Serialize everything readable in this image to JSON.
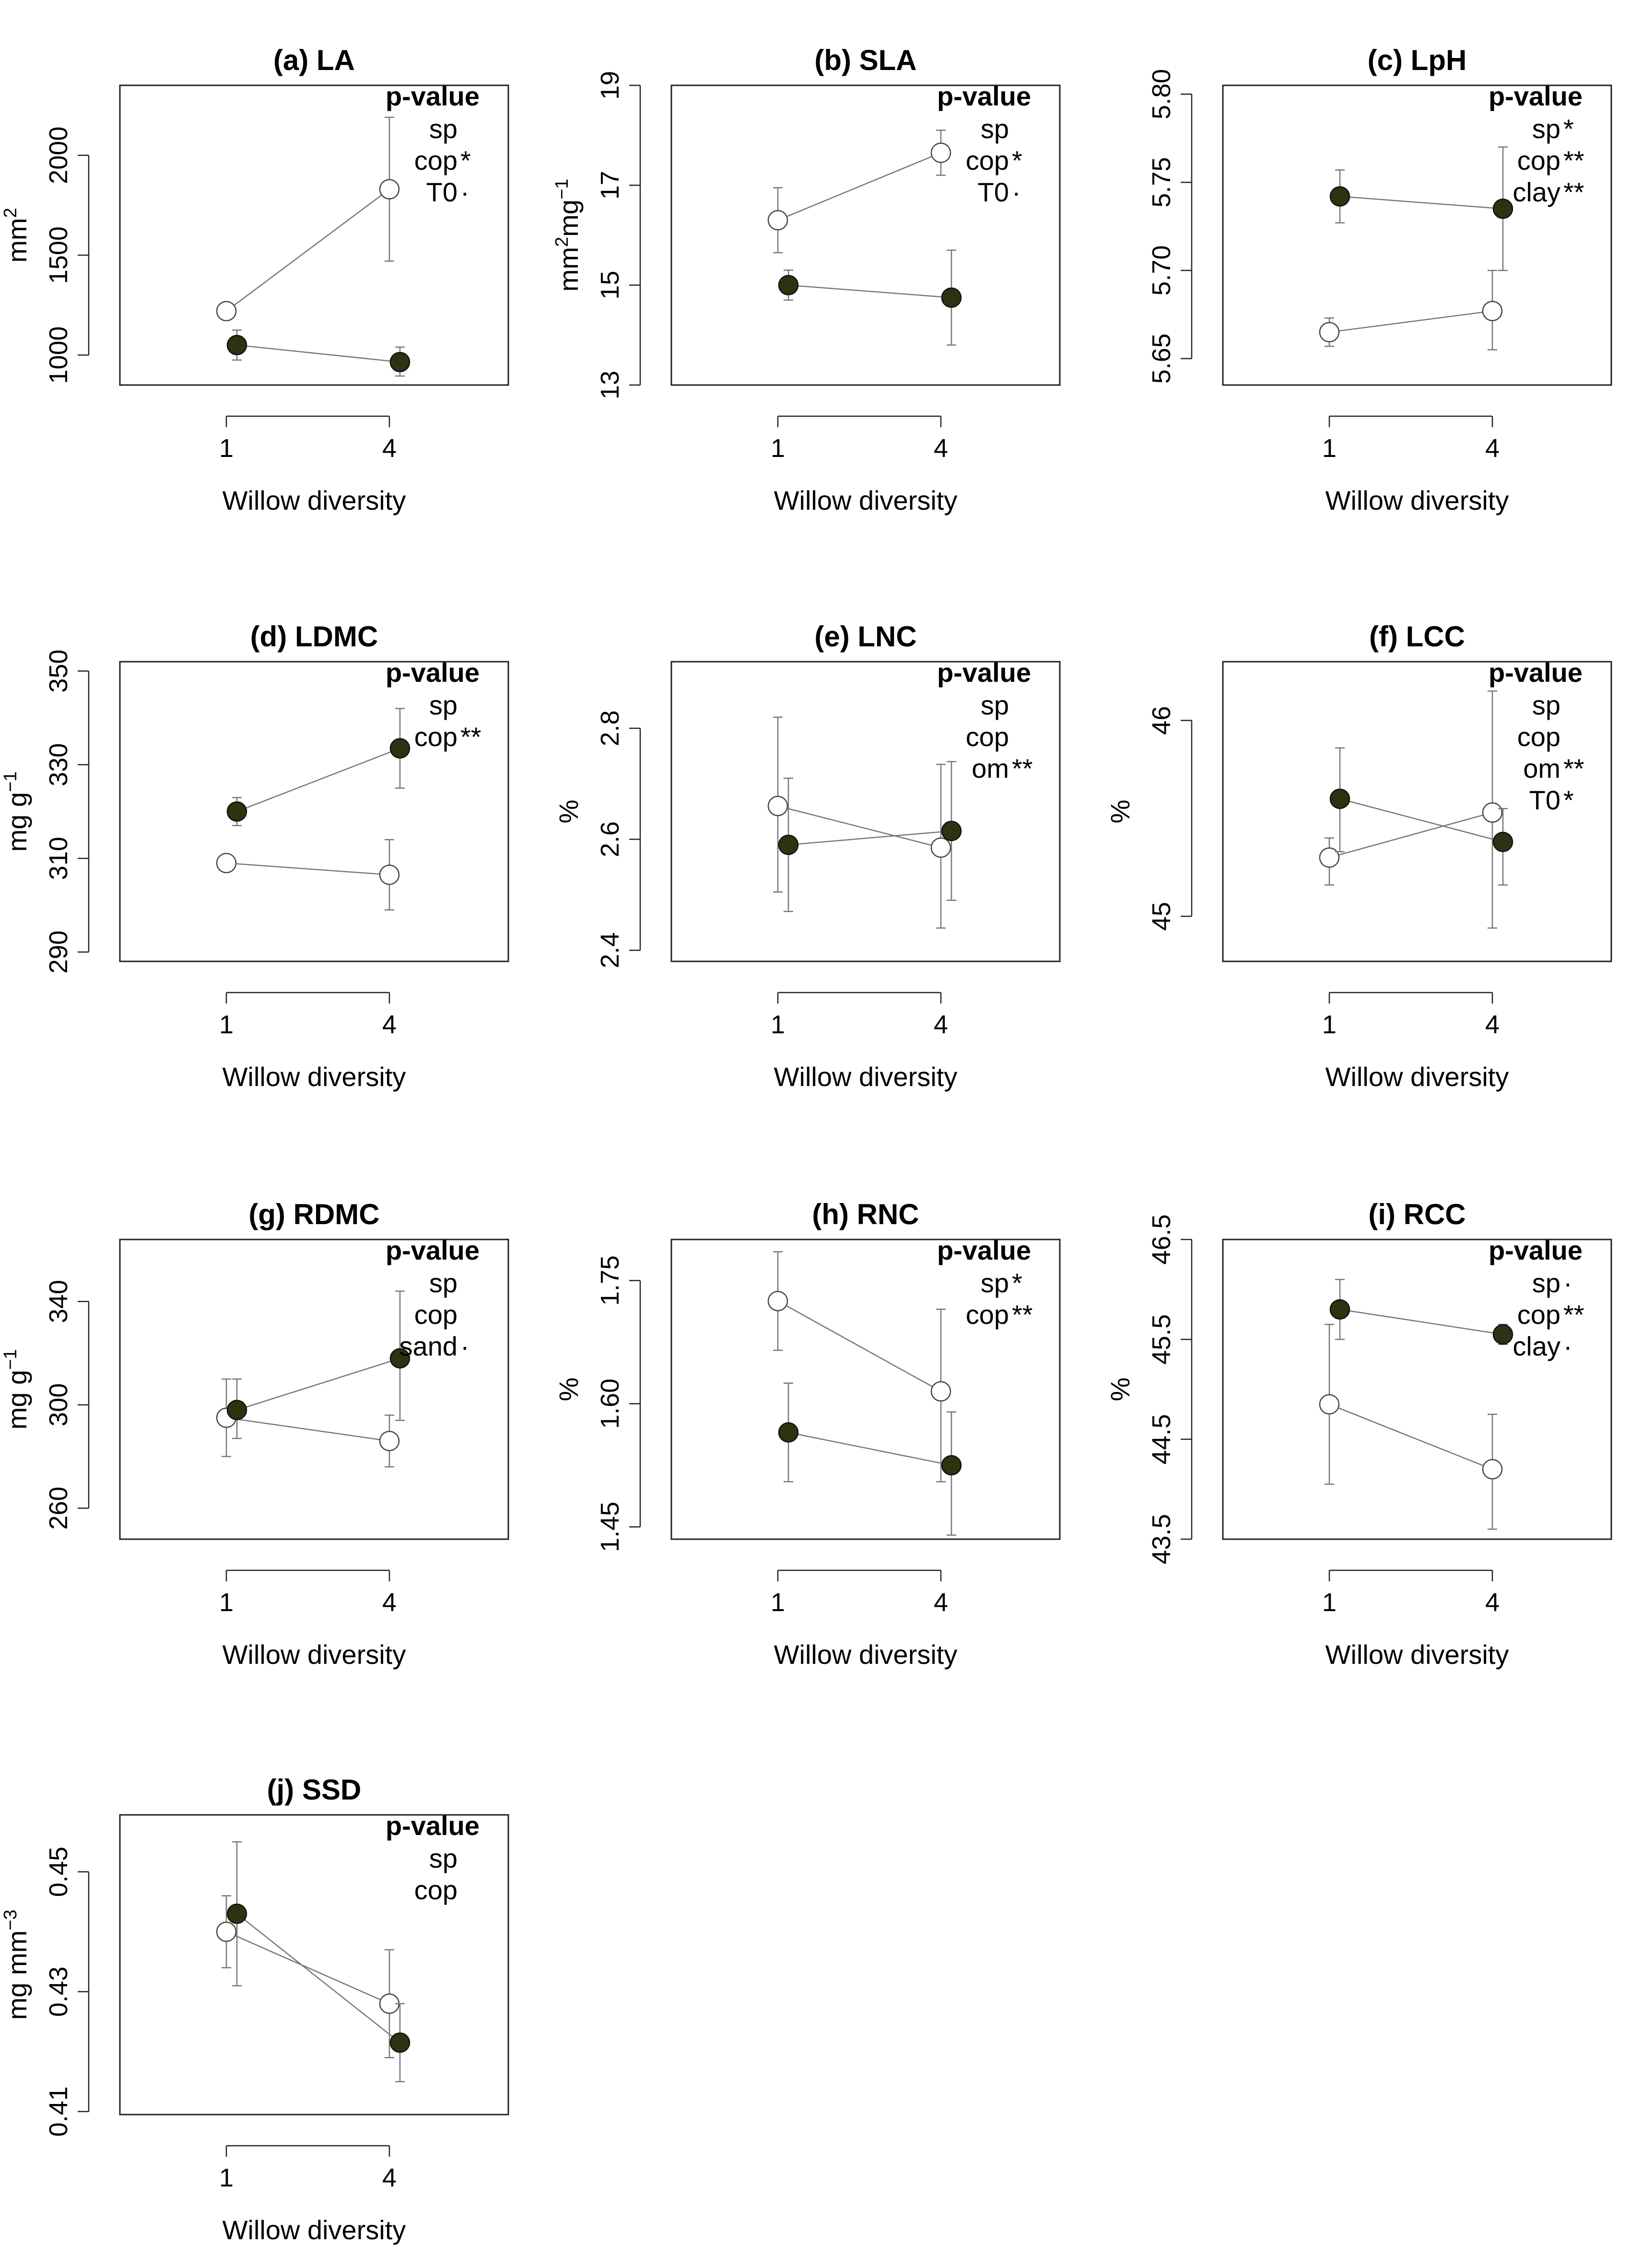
{
  "figure": {
    "background": "#ffffff",
    "filled_color": "#2b3311",
    "open_color": "#ffffff",
    "line_color": "#777777"
  },
  "chart_data": [
    {
      "type": "line",
      "title": "(a) LA",
      "xlabel": "Willow diversity",
      "ylabel": "mm²",
      "categories": [
        "1",
        "4"
      ],
      "ylim": [
        850,
        2350
      ],
      "yticks": [
        1000,
        1500,
        2000
      ],
      "series": [
        {
          "name": "open",
          "values": [
            1220,
            1830
          ],
          "err": [
            [
              1220,
              1220
            ],
            [
              1470,
              2190
            ]
          ]
        },
        {
          "name": "filled",
          "values": [
            1050,
            965
          ],
          "err": [
            [
              975,
              1125
            ],
            [
              895,
              1040
            ]
          ]
        }
      ],
      "annotation_title": "p-value",
      "annotations": [
        {
          "text": "sp",
          "sig": ""
        },
        {
          "text": "cop",
          "sig": "*"
        },
        {
          "text": "T0",
          "sig": "·"
        }
      ]
    },
    {
      "type": "line",
      "title": "(b) SLA",
      "xlabel": "Willow diversity",
      "ylabel": "mm²mg⁻¹",
      "categories": [
        "1",
        "4"
      ],
      "ylim": [
        13,
        19
      ],
      "yticks": [
        13,
        15,
        17,
        19
      ],
      "series": [
        {
          "name": "open",
          "values": [
            16.3,
            17.65
          ],
          "err": [
            [
              15.65,
              16.95
            ],
            [
              17.2,
              18.1
            ]
          ]
        },
        {
          "name": "filled",
          "values": [
            15.0,
            14.75
          ],
          "err": [
            [
              14.7,
              15.3
            ],
            [
              13.8,
              15.7
            ]
          ]
        }
      ],
      "annotation_title": "p-value",
      "annotations": [
        {
          "text": "sp",
          "sig": ""
        },
        {
          "text": "cop",
          "sig": "*"
        },
        {
          "text": "T0",
          "sig": "·"
        }
      ]
    },
    {
      "type": "line",
      "title": "(c) LpH",
      "xlabel": "Willow diversity",
      "ylabel": "",
      "categories": [
        "1",
        "4"
      ],
      "ylim": [
        5.635,
        5.805
      ],
      "yticks": [
        5.65,
        5.7,
        5.75,
        5.8
      ],
      "series": [
        {
          "name": "open",
          "values": [
            5.665,
            5.677
          ],
          "err": [
            [
              5.657,
              5.673
            ],
            [
              5.655,
              5.7
            ]
          ]
        },
        {
          "name": "filled",
          "values": [
            5.742,
            5.735
          ],
          "err": [
            [
              5.727,
              5.757
            ],
            [
              5.7,
              5.77
            ]
          ]
        }
      ],
      "annotation_title": "p-value",
      "annotations": [
        {
          "text": "sp",
          "sig": "*"
        },
        {
          "text": "cop",
          "sig": "**"
        },
        {
          "text": "clay",
          "sig": "**"
        }
      ]
    },
    {
      "type": "line",
      "title": "(d) LDMC",
      "xlabel": "Willow diversity",
      "ylabel": "mg g⁻¹",
      "categories": [
        "1",
        "4"
      ],
      "ylim": [
        288,
        352
      ],
      "yticks": [
        290,
        310,
        330,
        350
      ],
      "series": [
        {
          "name": "open",
          "values": [
            309,
            306.5
          ],
          "err": [
            [
              309,
              309
            ],
            [
              299,
              314
            ]
          ]
        },
        {
          "name": "filled",
          "values": [
            320,
            333.5
          ],
          "err": [
            [
              317,
              323
            ],
            [
              325,
              342
            ]
          ]
        }
      ],
      "annotation_title": "p-value",
      "annotations": [
        {
          "text": "sp",
          "sig": ""
        },
        {
          "text": "cop",
          "sig": "**"
        }
      ]
    },
    {
      "type": "line",
      "title": "(e) LNC",
      "xlabel": "Willow diversity",
      "ylabel": "%",
      "categories": [
        "1",
        "4"
      ],
      "ylim": [
        2.38,
        2.92
      ],
      "yticks": [
        2.4,
        2.6,
        2.8
      ],
      "series": [
        {
          "name": "open",
          "values": [
            2.66,
            2.585
          ],
          "err": [
            [
              2.505,
              2.82
            ],
            [
              2.44,
              2.735
            ]
          ]
        },
        {
          "name": "filled",
          "values": [
            2.59,
            2.615
          ],
          "err": [
            [
              2.47,
              2.71
            ],
            [
              2.49,
              2.74
            ]
          ]
        }
      ],
      "annotation_title": "p-value",
      "annotations": [
        {
          "text": "sp",
          "sig": ""
        },
        {
          "text": "cop",
          "sig": ""
        },
        {
          "text": "om",
          "sig": "**"
        }
      ]
    },
    {
      "type": "line",
      "title": "(f) LCC",
      "xlabel": "Willow diversity",
      "ylabel": "%",
      "categories": [
        "1",
        "4"
      ],
      "ylim": [
        44.77,
        46.3
      ],
      "yticks": [
        45.0,
        46.0
      ],
      "series": [
        {
          "name": "open",
          "values": [
            45.3,
            45.53
          ],
          "err": [
            [
              45.16,
              45.4
            ],
            [
              44.94,
              46.15
            ]
          ]
        },
        {
          "name": "filled",
          "values": [
            45.6,
            45.38
          ],
          "err": [
            [
              45.33,
              45.86
            ],
            [
              45.16,
              45.55
            ]
          ]
        }
      ],
      "annotation_title": "p-value",
      "annotations": [
        {
          "text": "sp",
          "sig": ""
        },
        {
          "text": "cop",
          "sig": ""
        },
        {
          "text": "om",
          "sig": "**"
        },
        {
          "text": "T0",
          "sig": "*"
        }
      ]
    },
    {
      "type": "line",
      "title": "(g) RDMC",
      "xlabel": "Willow diversity",
      "ylabel": "mg g⁻¹",
      "categories": [
        "1",
        "4"
      ],
      "ylim": [
        248,
        364
      ],
      "yticks": [
        260,
        300,
        340
      ],
      "series": [
        {
          "name": "open",
          "values": [
            295,
            286
          ],
          "err": [
            [
              280,
              310
            ],
            [
              276,
              296
            ]
          ]
        },
        {
          "name": "filled",
          "values": [
            298,
            318
          ],
          "err": [
            [
              287,
              310
            ],
            [
              294,
              344
            ]
          ]
        }
      ],
      "annotation_title": "p-value",
      "annotations": [
        {
          "text": "sp",
          "sig": ""
        },
        {
          "text": "cop",
          "sig": ""
        },
        {
          "text": "sand",
          "sig": "·"
        }
      ]
    },
    {
      "type": "line",
      "title": "(h) RNC",
      "xlabel": "Willow diversity",
      "ylabel": "%",
      "categories": [
        "1",
        "4"
      ],
      "ylim": [
        1.435,
        1.8
      ],
      "yticks": [
        1.45,
        1.6,
        1.75
      ],
      "series": [
        {
          "name": "open",
          "values": [
            1.725,
            1.615
          ],
          "err": [
            [
              1.665,
              1.785
            ],
            [
              1.505,
              1.715
            ]
          ]
        },
        {
          "name": "filled",
          "values": [
            1.565,
            1.525
          ],
          "err": [
            [
              1.505,
              1.625
            ],
            [
              1.44,
              1.59
            ]
          ]
        }
      ],
      "annotation_title": "p-value",
      "annotations": [
        {
          "text": "sp",
          "sig": "*"
        },
        {
          "text": "cop",
          "sig": "**"
        }
      ]
    },
    {
      "type": "line",
      "title": "(i) RCC",
      "xlabel": "Willow diversity",
      "ylabel": "%",
      "categories": [
        "1",
        "4"
      ],
      "ylim": [
        43.5,
        46.5
      ],
      "yticks": [
        43.5,
        44.5,
        45.5,
        46.5
      ],
      "series": [
        {
          "name": "open",
          "values": [
            44.85,
            44.2
          ],
          "err": [
            [
              44.05,
              45.65
            ],
            [
              43.6,
              44.75
            ]
          ]
        },
        {
          "name": "filled",
          "values": [
            45.8,
            45.55
          ],
          "err": [
            [
              45.5,
              46.1
            ],
            [
              45.45,
              45.65
            ]
          ]
        }
      ],
      "annotation_title": "p-value",
      "annotations": [
        {
          "text": "sp",
          "sig": "·"
        },
        {
          "text": "cop",
          "sig": "**"
        },
        {
          "text": "clay",
          "sig": "·"
        }
      ]
    },
    {
      "type": "line",
      "title": "(j) SSD",
      "xlabel": "Willow diversity",
      "ylabel": "mg mm⁻³",
      "categories": [
        "1",
        "4"
      ],
      "ylim": [
        0.4095,
        0.4595
      ],
      "yticks": [
        0.41,
        0.43,
        0.45
      ],
      "series": [
        {
          "name": "open",
          "values": [
            0.44,
            0.428
          ],
          "err": [
            [
              0.434,
              0.446
            ],
            [
              0.419,
              0.437
            ]
          ]
        },
        {
          "name": "filled",
          "values": [
            0.443,
            0.4215
          ],
          "err": [
            [
              0.431,
              0.455
            ],
            [
              0.415,
              0.428
            ]
          ]
        }
      ],
      "annotation_title": "p-value",
      "annotations": [
        {
          "text": "sp",
          "sig": ""
        },
        {
          "text": "cop",
          "sig": ""
        }
      ]
    }
  ]
}
